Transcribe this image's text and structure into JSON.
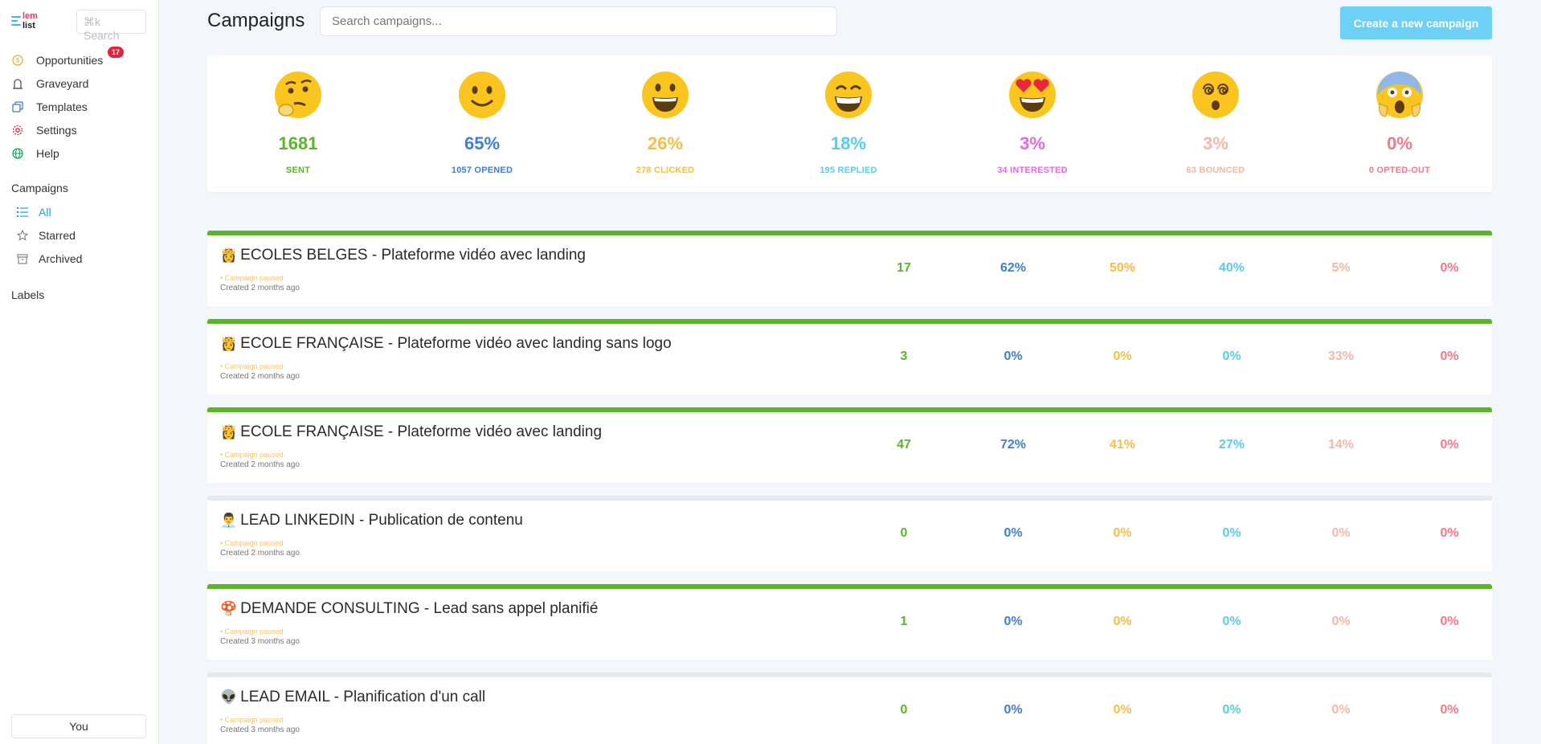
{
  "app": {
    "logo_top": "lem",
    "logo_bottom": "list",
    "search_shortcut": "⌘k Search"
  },
  "sidebar": {
    "items": [
      {
        "label": "Opportunities",
        "icon": "dollar-circle-icon",
        "badge": "17",
        "icon_color": "#e0b03a"
      },
      {
        "label": "Graveyard",
        "icon": "tombstone-icon",
        "icon_color": "#555"
      },
      {
        "label": "Templates",
        "icon": "copy-icon",
        "icon_color": "#3c78c8"
      },
      {
        "label": "Settings",
        "icon": "gear-icon",
        "icon_color": "#e0243c"
      },
      {
        "label": "Help",
        "icon": "globe-icon",
        "icon_color": "#14a86a"
      }
    ],
    "campaigns_title": "Campaigns",
    "campaign_items": [
      {
        "label": "All",
        "icon": "list-icon",
        "active": true
      },
      {
        "label": "Starred",
        "icon": "star-icon",
        "active": false
      },
      {
        "label": "Archived",
        "icon": "archive-icon",
        "active": false
      }
    ],
    "labels_title": "Labels",
    "you_label": "You"
  },
  "header": {
    "title": "Campaigns",
    "search_placeholder": "Search campaigns...",
    "create_label": "Create a new campaign"
  },
  "stats": [
    {
      "emoji": "thinking-face",
      "value": "1681",
      "label": "SENT",
      "color": "#5ab52a"
    },
    {
      "emoji": "slightly-smiling-face",
      "value": "65%",
      "label": "1057 OPENED",
      "color": "#3d7fd4"
    },
    {
      "emoji": "grinning-face",
      "value": "26%",
      "label": "278 CLICKED",
      "color": "#f7bd44"
    },
    {
      "emoji": "beaming-face",
      "value": "18%",
      "label": "195 REPLIED",
      "color": "#58cdea"
    },
    {
      "emoji": "heart-eyes-face",
      "value": "3%",
      "label": "34 INTERESTED",
      "color": "#e569e0"
    },
    {
      "emoji": "dizzy-face",
      "value": "3%",
      "label": "63 BOUNCED",
      "color": "#f5b7a6"
    },
    {
      "emoji": "screaming-face",
      "value": "0%",
      "label": "0 OPTED-OUT",
      "color": "#f2788a"
    }
  ],
  "campaigns": [
    {
      "emoji": "👸",
      "name": "ECOLES BELGES - Plateforme vidéo avec landing",
      "status": "• Campaign paused",
      "created": "Created 2 months ago",
      "active": true,
      "values": [
        "17",
        "62%",
        "50%",
        "40%",
        "5%",
        "0%"
      ]
    },
    {
      "emoji": "👸",
      "name": "ECOLE FRANÇAISE - Plateforme vidéo avec landing sans logo",
      "status": "• Campaign paused",
      "created": "Created 2 months ago",
      "active": true,
      "values": [
        "3",
        "0%",
        "0%",
        "0%",
        "33%",
        "0%"
      ]
    },
    {
      "emoji": "👸",
      "name": "ECOLE FRANÇAISE - Plateforme vidéo avec landing",
      "status": "• Campaign paused",
      "created": "Created 2 months ago",
      "active": true,
      "values": [
        "47",
        "72%",
        "41%",
        "27%",
        "14%",
        "0%"
      ]
    },
    {
      "emoji": "👨‍💼",
      "name": " LEAD LINKEDIN - Publication de contenu",
      "status": "• Campaign paused",
      "created": "Created 2 months ago",
      "active": false,
      "values": [
        "0",
        "0%",
        "0%",
        "0%",
        "0%",
        "0%"
      ]
    },
    {
      "emoji": "🍄",
      "name": " DEMANDE CONSULTING - Lead sans appel planifié",
      "status": "• Campaign paused",
      "created": "Created 3 months ago",
      "active": true,
      "values": [
        "1",
        "0%",
        "0%",
        "0%",
        "0%",
        "0%"
      ]
    },
    {
      "emoji": "👽",
      "name": " LEAD EMAIL - Planification d'un call",
      "status": "• Campaign paused",
      "created": "Created 3 months ago",
      "active": false,
      "values": [
        "0",
        "0%",
        "0%",
        "0%",
        "0%",
        "0%"
      ]
    }
  ],
  "column_colors": [
    "#5ab52a",
    "#3d7fd4",
    "#f7bd44",
    "#58cdea",
    "#f5b7a6",
    "#f2788a"
  ]
}
